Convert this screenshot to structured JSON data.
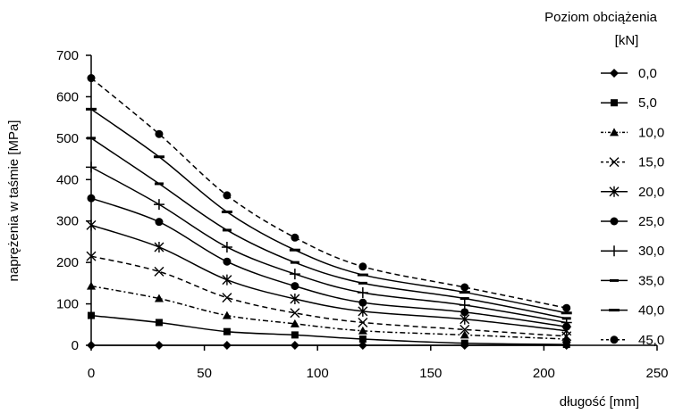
{
  "chart_data": {
    "type": "line",
    "title": "",
    "xlabel": "długość [mm]",
    "ylabel": "naprężenia w taśmie [MPa]",
    "xlim": [
      0,
      250
    ],
    "ylim": [
      0,
      700
    ],
    "xticks": [
      "0",
      "50",
      "100",
      "150",
      "200",
      "250"
    ],
    "yticks": [
      "0",
      "100",
      "200",
      "300",
      "400",
      "500",
      "600",
      "700"
    ],
    "grid": false,
    "legend_title_line1": "Poziom obciążenia",
    "legend_title_line2": "[kN]",
    "legend_position": "right",
    "x": [
      0,
      30,
      60,
      90,
      120,
      165,
      210
    ],
    "series": [
      {
        "name": "0,0",
        "marker": "diamond",
        "dash": "solid",
        "values": [
          0,
          0,
          0,
          0,
          0,
          0,
          0
        ]
      },
      {
        "name": "5,0",
        "marker": "square",
        "dash": "solid",
        "values": [
          72,
          55,
          33,
          25,
          15,
          5,
          2
        ]
      },
      {
        "name": "10,0",
        "marker": "triangle",
        "dash": "dashdot",
        "values": [
          143,
          113,
          72,
          52,
          35,
          25,
          15
        ]
      },
      {
        "name": "15,0",
        "marker": "x",
        "dash": "dashed",
        "values": [
          215,
          178,
          115,
          78,
          55,
          38,
          22
        ]
      },
      {
        "name": "20,0",
        "marker": "star",
        "dash": "solid",
        "values": [
          290,
          237,
          158,
          112,
          82,
          63,
          35
        ]
      },
      {
        "name": "25,0",
        "marker": "circle",
        "dash": "solid",
        "values": [
          355,
          298,
          202,
          143,
          103,
          80,
          45
        ]
      },
      {
        "name": "30,0",
        "marker": "plus",
        "dash": "solid",
        "values": [
          430,
          340,
          237,
          172,
          127,
          97,
          55
        ]
      },
      {
        "name": "35,0",
        "marker": "dash",
        "dash": "solid",
        "values": [
          500,
          390,
          278,
          200,
          150,
          113,
          65
        ]
      },
      {
        "name": "40,0",
        "marker": "bar",
        "dash": "solid",
        "values": [
          570,
          455,
          322,
          230,
          170,
          128,
          78
        ]
      },
      {
        "name": "45,0",
        "marker": "circle",
        "dash": "dashed",
        "values": [
          645,
          510,
          362,
          260,
          190,
          140,
          90
        ]
      }
    ]
  }
}
